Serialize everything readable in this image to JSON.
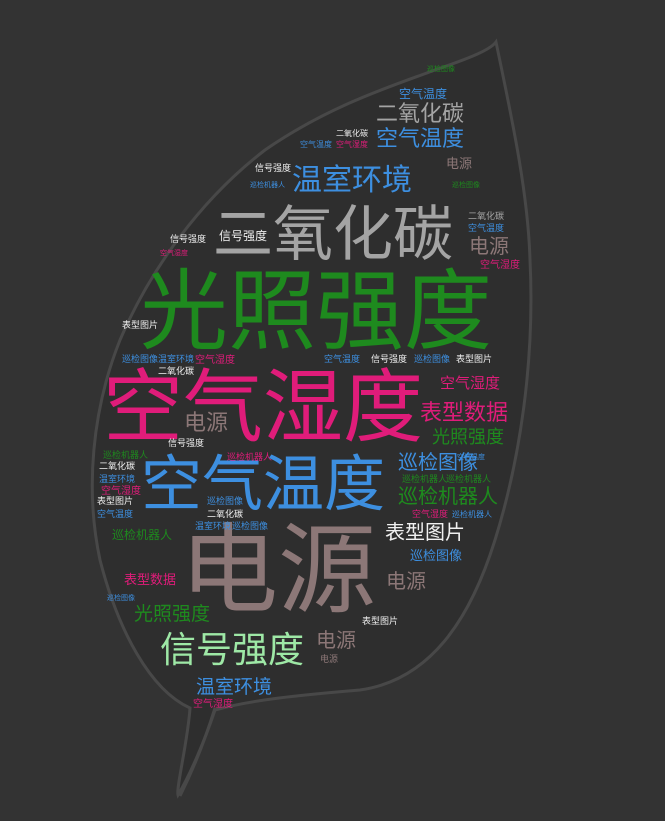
{
  "colors": {
    "background": "#333333",
    "leaf_fill": "#2e2e2e",
    "leaf_outline": "#484848",
    "green": "#1e8a1e",
    "light_green": "#9ee8a6",
    "pink": "#e01c7a",
    "blue": "#3d8fe0",
    "gray": "#a4a4a4",
    "brown": "#8c7777",
    "white": "#f0f0f0"
  },
  "words": [
    {
      "text": "光照强度",
      "color": "green"
    },
    {
      "text": "空气湿度",
      "color": "pink"
    },
    {
      "text": "空气温度",
      "color": "blue"
    },
    {
      "text": "电源",
      "color": "brown"
    },
    {
      "text": "二氧化碳",
      "color": "gray"
    },
    {
      "text": "信号强度",
      "color": "light_green"
    },
    {
      "text": "温室环境",
      "color": "blue"
    },
    {
      "text": "表型数据",
      "color": "pink"
    },
    {
      "text": "光照强度",
      "color": "green"
    },
    {
      "text": "巡检图像",
      "color": "blue"
    },
    {
      "text": "巡检机器人",
      "color": "green"
    },
    {
      "text": "表型图片",
      "color": "white"
    },
    {
      "text": "空气湿度",
      "color": "pink"
    },
    {
      "text": "电源",
      "color": "brown"
    },
    {
      "text": "二氧化碳",
      "color": "gray"
    },
    {
      "text": "空气温度",
      "color": "blue"
    },
    {
      "text": "电源",
      "color": "brown"
    },
    {
      "text": "电源",
      "color": "brown"
    },
    {
      "text": "电源",
      "color": "brown"
    },
    {
      "text": "光照强度",
      "color": "green"
    },
    {
      "text": "温室环境",
      "color": "blue"
    },
    {
      "text": "空气温度",
      "color": "blue"
    },
    {
      "text": "信号强度",
      "color": "white"
    },
    {
      "text": "巡检图像",
      "color": "blue"
    },
    {
      "text": "表型数据",
      "color": "pink"
    },
    {
      "text": "巡检机器人",
      "color": "green"
    },
    {
      "text": "空气湿度",
      "color": "pink"
    },
    {
      "text": "二氧化碳",
      "color": "gray"
    },
    {
      "text": "空气温度",
      "color": "blue"
    },
    {
      "text": "空气湿度",
      "color": "pink"
    },
    {
      "text": "信号强度",
      "color": "white"
    },
    {
      "text": "信号强度",
      "color": "white"
    },
    {
      "text": "表型图片",
      "color": "white"
    },
    {
      "text": "巡检图像",
      "color": "blue"
    },
    {
      "text": "温室环境",
      "color": "blue"
    },
    {
      "text": "空气湿度",
      "color": "pink"
    },
    {
      "text": "空气温度",
      "color": "blue"
    },
    {
      "text": "信号强度",
      "color": "white"
    },
    {
      "text": "表型图片",
      "color": "white"
    },
    {
      "text": "巡检图像",
      "color": "blue"
    },
    {
      "text": "二氧化碳",
      "color": "white"
    },
    {
      "text": "信号强度",
      "color": "white"
    },
    {
      "text": "巡检机器人",
      "color": "green"
    },
    {
      "text": "二氧化碳",
      "color": "white"
    },
    {
      "text": "温室环境",
      "color": "blue"
    },
    {
      "text": "空气湿度",
      "color": "pink"
    },
    {
      "text": "表型图片",
      "color": "white"
    },
    {
      "text": "空气温度",
      "color": "blue"
    },
    {
      "text": "巡检图像",
      "color": "blue"
    },
    {
      "text": "二氧化碳",
      "color": "white"
    },
    {
      "text": "温室环境",
      "color": "blue"
    },
    {
      "text": "巡检图像",
      "color": "blue"
    },
    {
      "text": "巡检机器人",
      "color": "green"
    },
    {
      "text": "巡检机器人",
      "color": "green"
    },
    {
      "text": "空气湿度",
      "color": "pink"
    },
    {
      "text": "巡检机器人",
      "color": "pink"
    },
    {
      "text": "表型图片",
      "color": "white"
    },
    {
      "text": "电源",
      "color": "brown"
    },
    {
      "text": "空气湿度",
      "color": "pink"
    },
    {
      "text": "空气温度",
      "color": "blue"
    },
    {
      "text": "巡检图像",
      "color": "green"
    },
    {
      "text": "巡检图像",
      "color": "green"
    },
    {
      "text": "巡检机器人",
      "color": "blue"
    },
    {
      "text": "空气湿度",
      "color": "pink"
    },
    {
      "text": "巡检机器人",
      "color": "blue"
    },
    {
      "text": "巡检图像",
      "color": "blue"
    },
    {
      "text": "二氧化碳",
      "color": "white"
    },
    {
      "text": "空气温度",
      "color": "blue"
    },
    {
      "text": "电源",
      "color": "brown"
    }
  ]
}
